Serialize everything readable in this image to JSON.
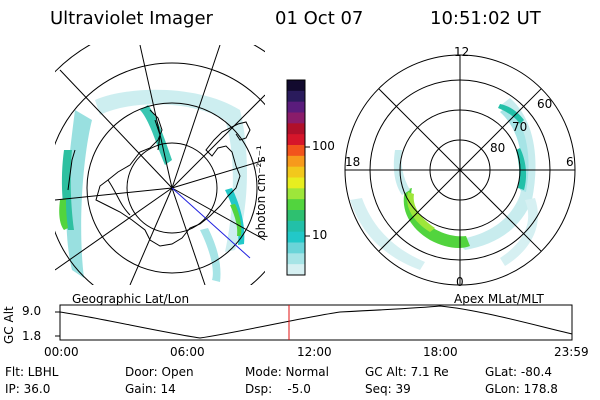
{
  "header": {
    "title": "Ultraviolet Imager",
    "date": "01 Oct 07",
    "time": "10:51:02 UT"
  },
  "colorbar": {
    "unit_label": "photon cm⁻²s⁻¹",
    "ticks": [
      "100",
      "10"
    ],
    "colors": [
      "#120a2e",
      "#2a1b5c",
      "#5a1c7c",
      "#8a1c6a",
      "#b0102a",
      "#d6162a",
      "#f2541c",
      "#f79a1c",
      "#f2c81c",
      "#e8ee20",
      "#9ee63a",
      "#52d43e",
      "#2ec070",
      "#22c0a8",
      "#22c8c8",
      "#6ad4d8",
      "#a6e4e6",
      "#d6f0f2"
    ]
  },
  "left_map": {
    "label": "Geographic Lat/Lon"
  },
  "right_map": {
    "label": "Apex MLat/MLT",
    "mlt_labels": {
      "top": "12",
      "left": "18",
      "right": "6",
      "bottom": "0"
    },
    "mlat_labels": [
      "60",
      "70",
      "80"
    ]
  },
  "gc_plot": {
    "ylabel": "GC Alt",
    "yticks": [
      "9.0",
      "1.8"
    ],
    "xticks": [
      "00:00",
      "06:00",
      "12:00",
      "18:00",
      "23:59"
    ],
    "marker_color": "#e01010"
  },
  "status": {
    "flt": "Flt: LBHL",
    "ip": "IP: 36.0",
    "door": "Door: Open",
    "gain": "Gain: 14",
    "mode": "Mode: Normal",
    "dsp": "Dsp:    -5.0",
    "gc_alt": "GC Alt: 7.1 Re",
    "seq": "Seq: 39",
    "glat": "GLat: -80.4",
    "glon": "GLon: 178.8"
  }
}
